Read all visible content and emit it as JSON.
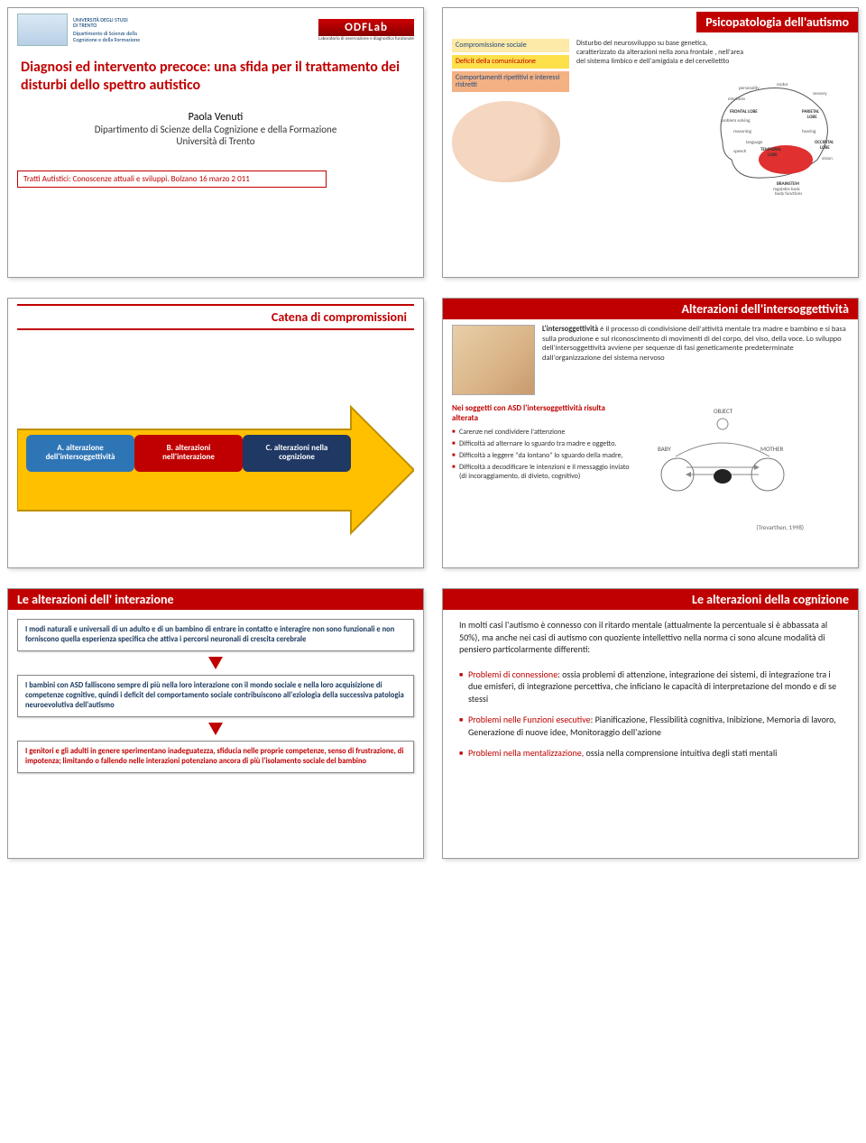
{
  "slide1": {
    "uni_line1": "UNIVERSITÀ DEGLI STUDI",
    "uni_line2": "DI TRENTO",
    "uni_line3": "Dipartimento di Scienze della",
    "uni_line4": "Cognizione e della Formazione",
    "lab": "ODFLab",
    "lab_sub": "Laboratorio di osservazione e diagnostica funzionale",
    "title": "Diagnosi ed intervento precoce: una sfida per il trattamento dei disturbi dello spettro autistico",
    "author": "Paola Venuti",
    "dept": "Dipartimento di Scienze della Cognizione e della Formazione",
    "uni": "Università di Trento",
    "footer": "Tratti Autistici: Conoscenze attuali e sviluppi. Bolzano 16 marzo 2 011"
  },
  "slide2": {
    "title": "Psicopatologia dell'autismo",
    "boxes": [
      {
        "text": "Compromissione sociale",
        "bg": "#fde9a8",
        "color": "#1f497d"
      },
      {
        "text": "Deficit della comunicazione",
        "bg": "#fde04a",
        "color": "#c00000"
      },
      {
        "text": "Comportamenti ripetitivi e interessi ristretti",
        "bg": "#f4b183",
        "color": "#1f497d"
      }
    ],
    "desc": "Disturbo del neurosviluppo su base genetica, caratterizzato da alterazioni nella zona frontale , nell'area del sistema limbico e dell'amigdala e del cervellettto",
    "head_labels": [
      "personality",
      "motor",
      "sensory",
      "emotions",
      "FRONTAL LOBE",
      "PARIETAL LOBE",
      "problem solving",
      "reasoning",
      "hearing",
      "language",
      "TEMPORAL LOBE",
      "OCCIPITAL LOBE",
      "speech",
      "vision",
      "BRAINSTEM",
      "regulates basic body functions"
    ]
  },
  "slide3": {
    "title": "Catena di compromissioni",
    "arrow_fill": "#ffc000",
    "arrow_stroke": "#bf9000",
    "stages": [
      {
        "label": "A. alterazione dell'intersoggettività",
        "bg": "#2e75b6"
      },
      {
        "label": "B. alterazioni nell'interazione",
        "bg": "#c00000"
      },
      {
        "label": "C. alterazioni nella cognizione",
        "bg": "#1f3864"
      }
    ]
  },
  "slide4": {
    "title": "Alterazioni dell'intersoggettività",
    "intro_bold": "L'intersoggettività",
    "intro": " è il processo di condivisione dell'attività mentale tra madre e bambino e  si basa sulla produzione e sul riconoscimento di movimenti di del corpo, del viso, della voce. Lo sviluppo dell'intersoggettività avviene per sequenze di fasi geneticamente predeterminate dall'organizzazione del sistema nervoso",
    "lt_head": "Nei soggetti con ASD l'intersoggettività risulta alterata",
    "lt_items": [
      "Carenze nel condividere l'attenzione",
      "Difficoltà ad alternare lo sguardo tra madre e  oggetto.",
      "Difficoltà  a leggere \"da lontano\" lo sguardo della madre,",
      "Difficoltà a decodificare le intenzioni e il messaggio  inviato (di incoraggiamento, di divieto, cognitivo)"
    ],
    "diagram_labels": {
      "object": "OBJECT",
      "baby": "BABY",
      "mother": "MOTHER"
    },
    "cite": "(Trevarthen, 1998)"
  },
  "slide5": {
    "title": "Le alterazioni dell' interazione",
    "box1": "I modi naturali e universali di un adulto e di un bambino di entrare in contatto e interagire non sono funzionali  e non forniscono quella esperienza specifica che attiva i percorsi neuronali di crescita cerebrale",
    "box2": "I bambini con ASD falliscono sempre di più nella loro interazione con il mondo sociale e nella loro acquisizione di competenze cognitive, quindi i deficit del comportamento sociale contribuiscono all'eziologia della successiva patologia neuroevolutiva dell'autismo",
    "box3": "I genitori  e gli adulti in genere sperimentano inadeguatezza, sfiducia nelle proprie competenze, senso di frustrazione,  di impotenza; limitando o fallendo  nelle interazioni potenziano ancora di più l'isolamento sociale del bambino"
  },
  "slide6": {
    "title": "Le alterazioni della cognizione",
    "para": "In molti casi l'autismo è connesso con il ritardo mentale (attualmente la percentuale si è abbassata al 50%), ma anche nei casi di autismo con quoziente intellettivo nella norma ci sono alcune modalità di pensiero particolarmente differenti:",
    "items": [
      {
        "lead": "Problemi di connessione",
        "rest": ": ossia problemi di attenzione, integrazione dei sistemi, di integrazione tra i due emisferi, di integrazione percettiva, che inficiano le capacità di interpretazione del mondo e di se stessi"
      },
      {
        "lead": "Problemi nelle Funzioni esecutive",
        "rest": ": Pianificazione, Flessibilità cognitiva, Inibizione, Memoria di lavoro, Generazione di nuove idee, Monitoraggio dell'azione"
      },
      {
        "lead": "Problemi  nella mentalizzazione,",
        "rest": " ossia nella comprensione intuitiva degli stati mentali"
      }
    ]
  }
}
